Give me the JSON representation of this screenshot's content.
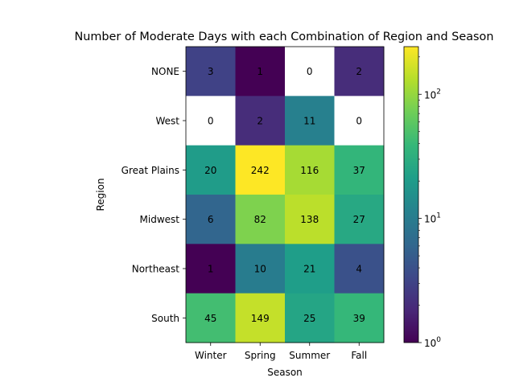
{
  "chart_data": {
    "type": "heatmap",
    "title": "Number of Moderate Days with each Combination of Region and Season",
    "xlabel": "Season",
    "ylabel": "Region",
    "x_categories": [
      "Winter",
      "Spring",
      "Summer",
      "Fall"
    ],
    "y_categories": [
      "NONE",
      "West",
      "Great Plains",
      "Midwest",
      "Northeast",
      "South"
    ],
    "values": [
      [
        3,
        1,
        0,
        2
      ],
      [
        0,
        2,
        11,
        0
      ],
      [
        20,
        242,
        116,
        37
      ],
      [
        6,
        82,
        138,
        27
      ],
      [
        1,
        10,
        21,
        4
      ],
      [
        45,
        149,
        25,
        39
      ]
    ],
    "color_scale": "log",
    "colormap": "viridis",
    "zero_cells_color": "#ffffff",
    "colorbar": {
      "range": [
        1,
        242
      ],
      "tick_labels": [
        "10^0",
        "10^1",
        "10^2"
      ]
    }
  }
}
